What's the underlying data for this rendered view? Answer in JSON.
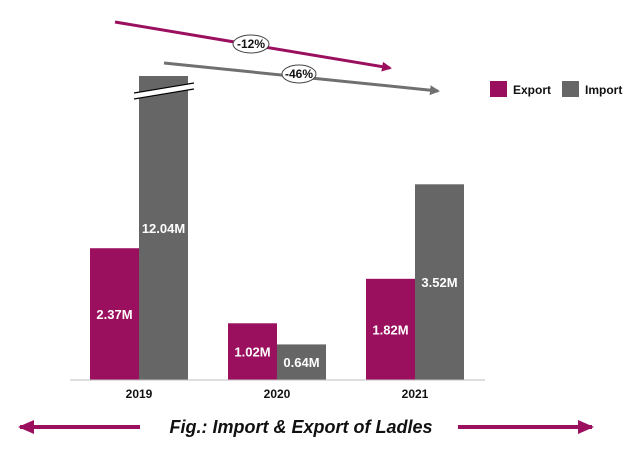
{
  "chart_data": {
    "type": "bar",
    "categories": [
      "2019",
      "2020",
      "2021"
    ],
    "series": [
      {
        "name": "Export",
        "values": [
          2.37,
          1.02,
          1.82
        ],
        "labels": [
          "2.37M",
          "1.02M",
          "1.82M"
        ],
        "color": "#9b0f5f"
      },
      {
        "name": "Import",
        "values": [
          12.04,
          0.64,
          3.52
        ],
        "labels": [
          "12.04M",
          "0.64M",
          "3.52M"
        ],
        "color": "#666666"
      }
    ],
    "axis_break": {
      "category": "2019",
      "series": "Import"
    },
    "ylim": [
      0,
      5
    ],
    "grid": false,
    "legend_position": "top-right",
    "annotations": [
      {
        "text": "-12%",
        "series": "Export",
        "from": "2019",
        "to": "2021",
        "color": "#9b0f5f"
      },
      {
        "text": "-46%",
        "series": "Import",
        "from": "2019",
        "to": "2021",
        "color": "#707070"
      }
    ],
    "caption": "Fig.: Import & Export of Ladles",
    "caption_arrow_color": "#9b0f5f"
  }
}
